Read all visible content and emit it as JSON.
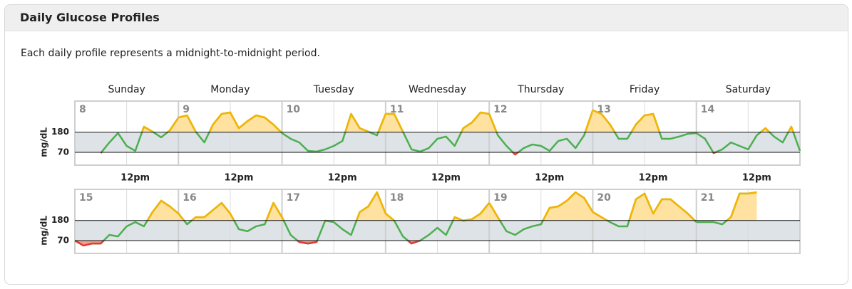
{
  "header": {
    "title": "Daily Glucose Profiles",
    "description": "Each daily profile represents a midnight-to-midnight period."
  },
  "chart_data": {
    "type": "line",
    "weekdays": [
      "Sunday",
      "Monday",
      "Tuesday",
      "Wednesday",
      "Thursday",
      "Friday",
      "Saturday"
    ],
    "y_label": "mg/dL",
    "ylim": [
      0,
      350
    ],
    "yticks": [
      180,
      70
    ],
    "x_tick_label": "12pm",
    "line_color": "#4caf50",
    "high_color": "#f5b400",
    "low_color": "#e53935",
    "high_fill": "#ffe1a0",
    "low_fill": "#f4a08f",
    "range_fill": "#dde3e6",
    "weeks": [
      [
        {
          "date": "8",
          "values": [
            null,
            null,
            null,
            66,
            124,
            175,
            105,
            78,
            210,
            183,
            152,
            190,
            260
          ]
        },
        {
          "date": "9",
          "values": [
            260,
            272,
            183,
            124,
            222,
            280,
            288,
            202,
            241,
            272,
            260,
            222,
            175
          ]
        },
        {
          "date": "10",
          "values": [
            175,
            144,
            124,
            78,
            74,
            86,
            105,
            132,
            280,
            202,
            183,
            163,
            280
          ]
        },
        {
          "date": "11",
          "values": [
            280,
            280,
            183,
            86,
            74,
            93,
            144,
            156,
            105,
            202,
            233,
            288,
            280
          ]
        },
        {
          "date": "12",
          "values": [
            280,
            163,
            105,
            58,
            93,
            113,
            105,
            78,
            132,
            144,
            93,
            163,
            300
          ]
        },
        {
          "date": "13",
          "values": [
            300,
            280,
            222,
            144,
            144,
            222,
            272,
            280,
            144,
            144,
            156,
            171,
            175
          ]
        },
        {
          "date": "14",
          "values": [
            175,
            144,
            66,
            86,
            124,
            105,
            86,
            163,
            202,
            156,
            124,
            210,
            78
          ]
        }
      ],
      [
        {
          "date": "15",
          "values": [
            70,
            43,
            54,
            54,
            101,
            93,
            148,
            171,
            148,
            226,
            288,
            257,
            218
          ]
        },
        {
          "date": "16",
          "values": [
            218,
            159,
            198,
            198,
            237,
            276,
            218,
            132,
            121,
            148,
            159,
            276,
            198
          ]
        },
        {
          "date": "17",
          "values": [
            198,
            101,
            62,
            54,
            62,
            179,
            171,
            132,
            101,
            226,
            257,
            334,
            218
          ]
        },
        {
          "date": "18",
          "values": [
            218,
            179,
            93,
            54,
            70,
            101,
            140,
            101,
            198,
            179,
            187,
            218,
            276
          ]
        },
        {
          "date": "19",
          "values": [
            276,
            198,
            121,
            101,
            132,
            148,
            159,
            249,
            257,
            288,
            334,
            303,
            226
          ]
        },
        {
          "date": "20",
          "values": [
            226,
            198,
            171,
            148,
            148,
            296,
            327,
            218,
            296,
            296,
            257,
            218,
            171
          ]
        },
        {
          "date": "21",
          "values": [
            171,
            171,
            171,
            159,
            198,
            327,
            327,
            334,
            null,
            null,
            null,
            null,
            null
          ]
        }
      ]
    ]
  }
}
